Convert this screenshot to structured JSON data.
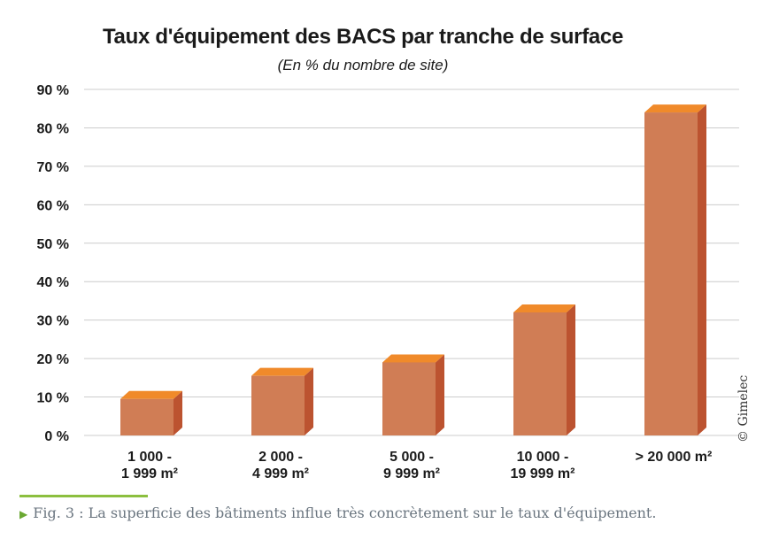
{
  "chart_data": {
    "type": "bar",
    "title": "Taux d'équipement des BACS par tranche de surface",
    "subtitle": "(En % du nombre de site)",
    "categories": [
      [
        "1 000 -",
        "1 999 m²"
      ],
      [
        "2 000 -",
        "4 999 m²"
      ],
      [
        "5 000 -",
        "9 999 m²"
      ],
      [
        "10 000 -",
        "19 999 m²"
      ],
      [
        "> 20 000 m²"
      ]
    ],
    "values": [
      9.5,
      15.5,
      19,
      32,
      84
    ],
    "ylim": [
      0,
      90
    ],
    "yticks": [
      "0 %",
      "10 %",
      "20 %",
      "30 %",
      "40 %",
      "50 %",
      "60 %",
      "70 %",
      "80 %",
      "90 %"
    ],
    "grid": true,
    "bar_style": "3d",
    "colors": {
      "front": "#d07d55",
      "side": "#bc5330",
      "top": "#f08a2a",
      "grid": "#cccccc"
    }
  },
  "credit": "© Gimelec",
  "caption": "Fig. 3 : La superficie des bâtiments influe très concrètement sur le taux d'équipement.",
  "caption_icon": "triangle-right-icon"
}
